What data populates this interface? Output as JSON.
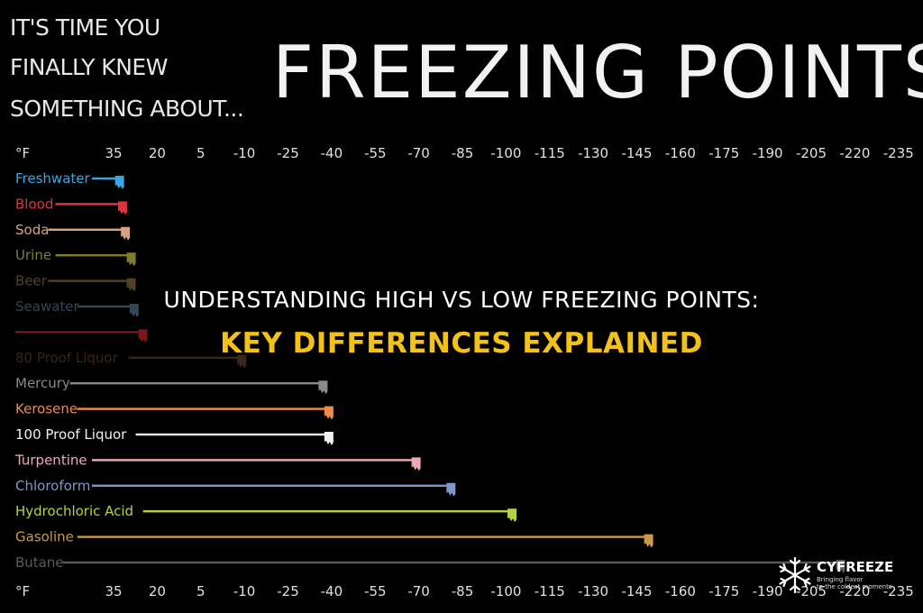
{
  "header": {
    "tagline": [
      "IT'S TIME YOU",
      "FINALLY KNEW",
      "SOMETHING ABOUT..."
    ],
    "headline": "FREEZING POINTS"
  },
  "overlay": {
    "line1": "UNDERSTANDING HIGH VS LOW FREEZING POINTS:",
    "line2": "KEY DIFFERENCES EXPLAINED"
  },
  "logo": {
    "name": "CYFREEZE",
    "tagline_line1": "Bringing flavor",
    "tagline_line2": "to the coldest moments"
  },
  "chart_data": {
    "type": "bar",
    "orientation": "horizontal",
    "unit_label": "°F",
    "x_ticks": [
      35,
      20,
      5,
      -10,
      -25,
      -40,
      -55,
      -70,
      -85,
      -100,
      -115,
      -130,
      -145,
      -160,
      -175,
      -190,
      -205,
      -220,
      -235
    ],
    "xlim": [
      41,
      -240
    ],
    "x_axis_reversed": true,
    "categories": [
      "Freshwater",
      "Blood",
      "Soda",
      "Urine",
      "Beer",
      "Seawater",
      "",
      "80 Proof Liquor",
      "Mercury",
      "Kerosene",
      "100 Proof Liquor",
      "Turpentine",
      "Chloroform",
      "Hydrochloric Acid",
      "Gasoline",
      "Butane"
    ],
    "values": [
      32,
      31,
      30,
      28,
      28,
      27,
      24,
      -10,
      -38,
      -40,
      -40,
      -70,
      -82,
      -103,
      -150,
      -216
    ],
    "colors": [
      "#3aa7e3",
      "#e0343c",
      "#d9a083",
      "#7d7f2e",
      "#7b6640",
      "#4f6d7f",
      "#b8232b",
      "#5a3a22",
      "#8a8a8a",
      "#f08a4b",
      "#f0f0f0",
      "#f2a7b7",
      "#7f96c6",
      "#b4d23e",
      "#c89a45",
      "#5a5a5a"
    ]
  }
}
